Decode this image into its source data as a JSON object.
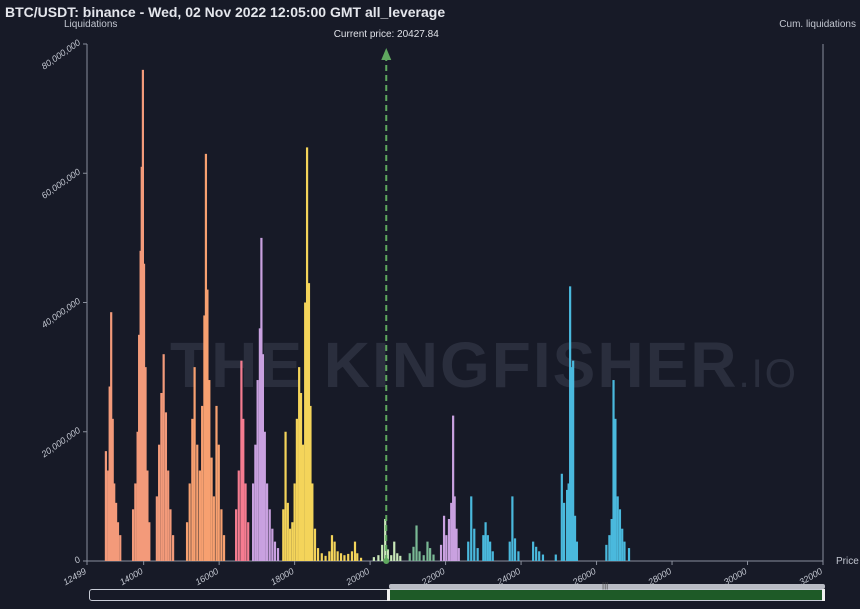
{
  "title": "BTC/USDT: binance - Wed, 02 Nov 2022 12:05:00 GMT all_leverage",
  "watermark": {
    "main": "THE KINGFISHER",
    "suffix": ".IO"
  },
  "colors": {
    "background": "#171a27",
    "current_price_line": "#5fa85f",
    "navigator_window": "#1e5a27"
  },
  "chart_data": {
    "type": "bar",
    "y_axis_title": "Liquidations",
    "y2_axis_title": "Cum. liquidations",
    "x_axis_title": "Price",
    "current_price_label": "Current price: 20427.84",
    "current_price": 20427.84,
    "xlim": [
      12499,
      32000
    ],
    "ylim": [
      0,
      80000000
    ],
    "x_ticks": [
      "12499",
      "14000",
      "16000",
      "18000",
      "20000",
      "22000",
      "24000",
      "26000",
      "28000",
      "30000",
      "32000"
    ],
    "y_ticks": [
      "0",
      "20,000,000",
      "40,000,000",
      "60,000,000",
      "80,000,000"
    ],
    "series": [
      {
        "color": "#f39a7a",
        "values": [
          [
            13000,
            17000000
          ],
          [
            13060,
            14000000
          ],
          [
            13100,
            27000000
          ],
          [
            13140,
            38500000
          ],
          [
            13180,
            22000000
          ],
          [
            13220,
            12000000
          ],
          [
            13270,
            9000000
          ],
          [
            13320,
            6000000
          ],
          [
            13380,
            4000000
          ],
          [
            13720,
            8000000
          ],
          [
            13780,
            12000000
          ],
          [
            13840,
            20000000
          ],
          [
            13880,
            35000000
          ],
          [
            13920,
            48000000
          ],
          [
            13950,
            61000000
          ],
          [
            13980,
            76000000
          ],
          [
            14010,
            46000000
          ],
          [
            14050,
            30000000
          ],
          [
            14100,
            14000000
          ],
          [
            14150,
            6000000
          ],
          [
            14350,
            10000000
          ],
          [
            14410,
            18000000
          ],
          [
            14470,
            26000000
          ],
          [
            14530,
            32000000
          ],
          [
            14590,
            23000000
          ],
          [
            14650,
            14000000
          ],
          [
            14710,
            8000000
          ],
          [
            14780,
            4000000
          ]
        ]
      },
      {
        "color": "#f7a070",
        "values": [
          [
            15150,
            6000000
          ],
          [
            15220,
            12000000
          ],
          [
            15290,
            22000000
          ],
          [
            15350,
            30000000
          ],
          [
            15420,
            18000000
          ],
          [
            15490,
            14000000
          ],
          [
            15550,
            24000000
          ],
          [
            15610,
            38000000
          ],
          [
            15650,
            63000000
          ],
          [
            15690,
            42000000
          ],
          [
            15740,
            28000000
          ],
          [
            15800,
            16000000
          ],
          [
            15860,
            10000000
          ],
          [
            15930,
            24000000
          ],
          [
            15990,
            18000000
          ],
          [
            16060,
            8000000
          ],
          [
            16130,
            4000000
          ]
        ]
      },
      {
        "color": "#f57c90",
        "values": [
          [
            16450,
            8000000
          ],
          [
            16520,
            14000000
          ],
          [
            16590,
            31000000
          ],
          [
            16640,
            22000000
          ],
          [
            16700,
            12000000
          ],
          [
            16770,
            6000000
          ]
        ]
      },
      {
        "color": "#c9a1e0",
        "values": [
          [
            16900,
            12000000
          ],
          [
            16960,
            18000000
          ],
          [
            17020,
            28000000
          ],
          [
            17080,
            36000000
          ],
          [
            17120,
            50000000
          ],
          [
            17160,
            32000000
          ],
          [
            17210,
            20000000
          ],
          [
            17270,
            12000000
          ],
          [
            17340,
            8000000
          ],
          [
            17410,
            5000000
          ],
          [
            17480,
            3000000
          ],
          [
            17560,
            2000000
          ]
        ]
      },
      {
        "color": "#f4d45a",
        "values": [
          [
            17700,
            8000000
          ],
          [
            17760,
            20000000
          ],
          [
            17820,
            9000000
          ],
          [
            17880,
            5000000
          ],
          [
            17940,
            6000000
          ],
          [
            18000,
            12000000
          ],
          [
            18060,
            22000000
          ],
          [
            18120,
            30000000
          ],
          [
            18170,
            26000000
          ],
          [
            18220,
            18000000
          ],
          [
            18280,
            40000000
          ],
          [
            18330,
            64000000
          ],
          [
            18380,
            43000000
          ],
          [
            18420,
            24000000
          ],
          [
            18470,
            12000000
          ],
          [
            18540,
            5000000
          ],
          [
            18620,
            2000000
          ],
          [
            18720,
            1200000
          ],
          [
            18820,
            800000
          ],
          [
            18920,
            1500000
          ],
          [
            18990,
            4000000
          ],
          [
            19060,
            3000000
          ],
          [
            19140,
            1500000
          ],
          [
            19230,
            1200000
          ],
          [
            19320,
            900000
          ],
          [
            19420,
            1100000
          ],
          [
            19520,
            1500000
          ],
          [
            19600,
            3000000
          ],
          [
            19660,
            1200000
          ],
          [
            19760,
            500000
          ]
        ]
      },
      {
        "color": "#c9e8b8",
        "values": [
          [
            20100,
            600000
          ],
          [
            20220,
            900000
          ],
          [
            20320,
            2500000
          ],
          [
            20400,
            6500000
          ],
          [
            20470,
            1800000
          ],
          [
            20560,
            900000
          ],
          [
            20640,
            3000000
          ],
          [
            20720,
            1200000
          ],
          [
            20800,
            800000
          ]
        ]
      },
      {
        "color": "#7ab995",
        "values": [
          [
            21050,
            1200000
          ],
          [
            21150,
            2200000
          ],
          [
            21230,
            5500000
          ],
          [
            21310,
            1500000
          ],
          [
            21420,
            900000
          ],
          [
            21520,
            3000000
          ],
          [
            21590,
            2000000
          ],
          [
            21680,
            1000000
          ]
        ]
      },
      {
        "color": "#c9a1e0",
        "values": [
          [
            21880,
            2500000
          ],
          [
            21960,
            7000000
          ],
          [
            22020,
            4000000
          ],
          [
            22090,
            6500000
          ],
          [
            22150,
            9000000
          ],
          [
            22200,
            22500000
          ],
          [
            22240,
            10000000
          ],
          [
            22290,
            5000000
          ],
          [
            22350,
            2000000
          ]
        ]
      },
      {
        "color": "#4ab9dd",
        "values": [
          [
            22600,
            3000000
          ],
          [
            22680,
            10000000
          ],
          [
            22760,
            5000000
          ],
          [
            22850,
            2000000
          ],
          [
            23000,
            4000000
          ],
          [
            23060,
            6000000
          ],
          [
            23120,
            4000000
          ],
          [
            23180,
            3000000
          ],
          [
            23250,
            1500000
          ],
          [
            23700,
            3000000
          ],
          [
            23770,
            10000000
          ],
          [
            23840,
            3500000
          ],
          [
            23930,
            1500000
          ],
          [
            24320,
            3000000
          ],
          [
            24400,
            2200000
          ],
          [
            24480,
            1500000
          ],
          [
            24580,
            1000000
          ],
          [
            24920,
            1000000
          ],
          [
            25080,
            13500000
          ],
          [
            25140,
            9000000
          ],
          [
            25220,
            11000000
          ],
          [
            25260,
            12000000
          ],
          [
            25300,
            42500000
          ],
          [
            25340,
            30000000
          ],
          [
            25380,
            31000000
          ],
          [
            25430,
            7000000
          ],
          [
            25480,
            3000000
          ],
          [
            26260,
            2500000
          ],
          [
            26340,
            4000000
          ],
          [
            26400,
            6500000
          ],
          [
            26450,
            28000000
          ],
          [
            26500,
            22000000
          ],
          [
            26560,
            10000000
          ],
          [
            26620,
            8000000
          ],
          [
            26680,
            5000000
          ],
          [
            26740,
            3000000
          ],
          [
            26860,
            2000000
          ]
        ]
      }
    ]
  },
  "navigator": {
    "grip": "|||"
  }
}
